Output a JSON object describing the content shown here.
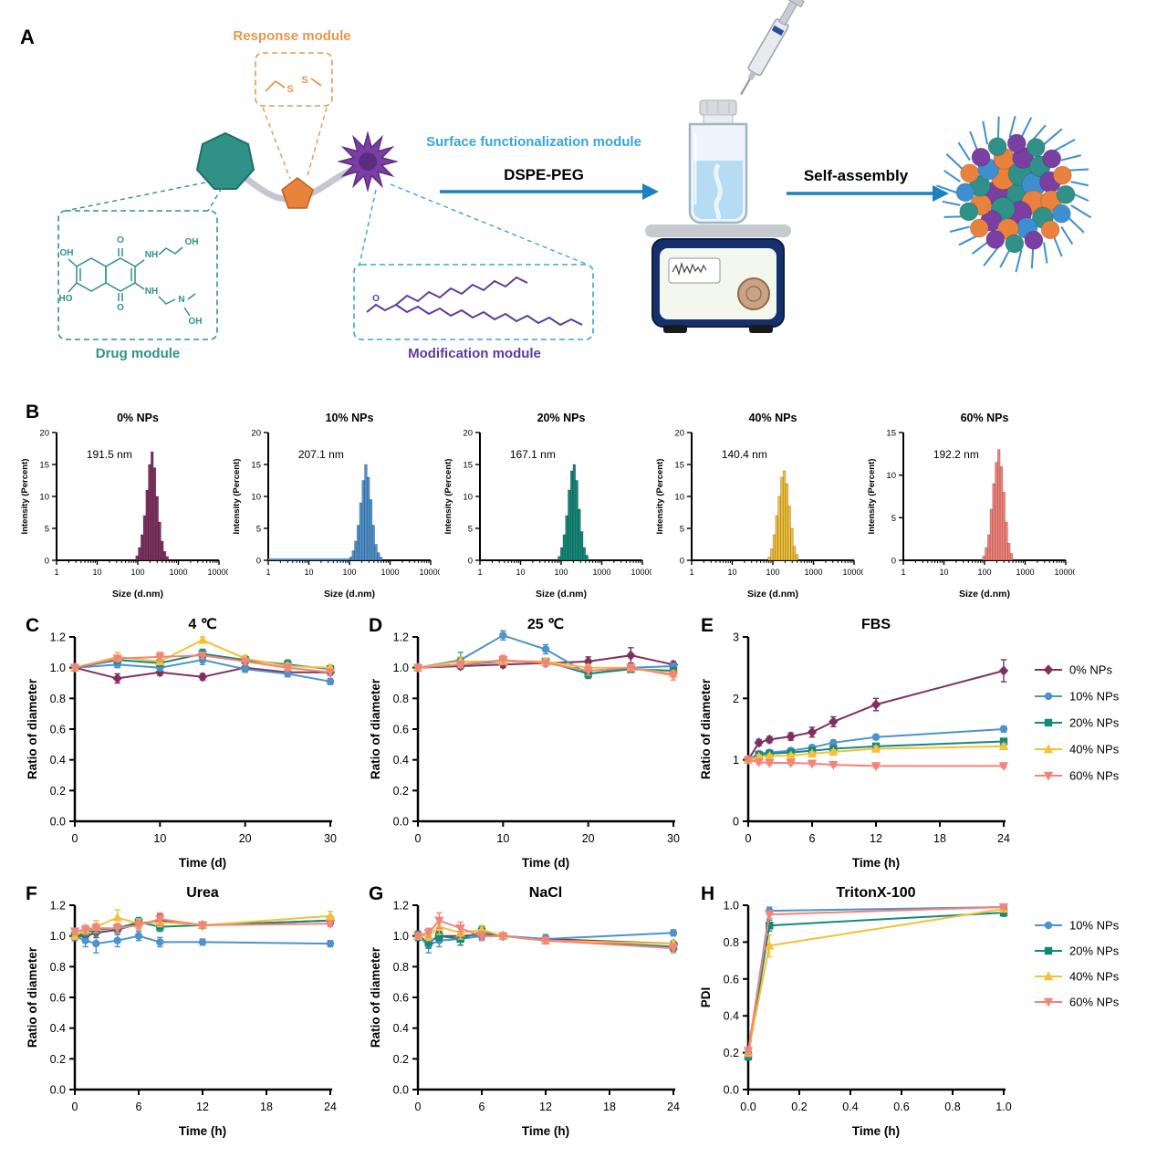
{
  "panels": {
    "a": "A",
    "b": "B",
    "c": "C",
    "d": "D",
    "e": "E",
    "f": "F",
    "g": "G",
    "h": "H"
  },
  "panelA": {
    "response_module": "Response module",
    "drug_module": "Drug module",
    "surface_module": "Surface functionalization module",
    "modification_module": "Modification module",
    "dspe_peg": "DSPE-PEG",
    "self_assembly": "Self-assembly",
    "disulfide": [
      "S",
      "S"
    ],
    "drug_labels": [
      "OH",
      "O",
      "NH",
      "OH",
      "HO",
      "O",
      "NH",
      "N",
      "OH"
    ],
    "lipid_o": "O",
    "colors": {
      "response": "#E8954E",
      "drug": "#2F9188",
      "surface": "#39A5DC",
      "modification": "#5B3A9B",
      "arrow": "#1E7FC2"
    }
  },
  "series_colors": {
    "0% NPs": "#7E3160",
    "10% NPs": "#4E91CB",
    "20% NPs": "#14897B",
    "40% NPs": "#F3C13A",
    "60% NPs": "#F4837A"
  },
  "chart_data": [
    {
      "type": "hist",
      "title": "0% NPs",
      "peak_label": "191.5 nm",
      "color": "#7E3160",
      "ylabel": "Intensity (Percent)",
      "xlabel": "Size (d.nm)",
      "xticklabels": [
        "1",
        "10",
        "100",
        "1000",
        "10000"
      ],
      "ymax": 20,
      "yticks": [
        0,
        5,
        10,
        15,
        20
      ],
      "log_start": 1.95,
      "log_step": 0.062,
      "bars": [
        0.7,
        2,
        4,
        7,
        11,
        15,
        17,
        14.5,
        10,
        6,
        3,
        1.4,
        0.6
      ]
    },
    {
      "type": "hist",
      "title": "10% NPs",
      "peak_label": "207.1 nm",
      "color": "#4E91CB",
      "ylabel": "Intensity (Percent)",
      "xlabel": "Size (d.nm)",
      "xticklabels": [
        "1",
        "10",
        "100",
        "1000",
        "10000"
      ],
      "ymax": 20,
      "yticks": [
        0,
        5,
        10,
        15,
        20
      ],
      "log_start": 2.0,
      "log_step": 0.062,
      "baseline": 2.05,
      "bars": [
        0.5,
        1.5,
        3,
        5.5,
        9,
        12.5,
        15,
        13,
        9.5,
        5.5,
        2.5,
        1.2,
        0.5
      ]
    },
    {
      "type": "hist",
      "title": "20% NPs",
      "peak_label": "167.1 nm",
      "color": "#14897B",
      "ylabel": "Intensity (Percent)",
      "xlabel": "Size (d.nm)",
      "xticklabels": [
        "1",
        "10",
        "100",
        "1000",
        "10000"
      ],
      "ymax": 20,
      "yticks": [
        0,
        5,
        10,
        15,
        20
      ],
      "log_start": 1.92,
      "log_step": 0.062,
      "bars": [
        0.6,
        2,
        4,
        7,
        11,
        14,
        15,
        12.5,
        8,
        4.5,
        2,
        0.8
      ]
    },
    {
      "type": "hist",
      "title": "40% NPs",
      "peak_label": "140.4 nm",
      "color": "#F3C13A",
      "ylabel": "Intensity (Percent)",
      "xlabel": "Size (d.nm)",
      "xticklabels": [
        "1",
        "10",
        "100",
        "1000",
        "10000"
      ],
      "ymax": 20,
      "yticks": [
        0,
        5,
        10,
        15,
        20
      ],
      "log_start": 1.88,
      "log_step": 0.062,
      "bars": [
        0.5,
        1.8,
        4,
        7,
        10,
        13,
        14,
        12,
        8.5,
        5,
        2.2,
        0.9
      ]
    },
    {
      "type": "hist",
      "title": "60% NPs",
      "peak_label": "192.2 nm",
      "color": "#F4837A",
      "ylabel": "Intensity (Percent)",
      "xlabel": "Size (d.nm)",
      "xticklabels": [
        "1",
        "10",
        "100",
        "1000",
        "10000"
      ],
      "ymax": 15,
      "yticks": [
        0,
        5,
        10,
        15
      ],
      "log_start": 1.95,
      "log_step": 0.062,
      "bars": [
        0.5,
        1.5,
        3,
        6,
        9,
        11.5,
        13,
        11,
        8,
        4.5,
        2,
        0.8
      ]
    },
    {
      "type": "line",
      "title": "4 ℃",
      "xlabel": "Time (d)",
      "ylabel": "Ratio of diameter",
      "xlim": [
        0,
        30
      ],
      "ylim": [
        0,
        1.2
      ],
      "xticks": [
        0,
        10,
        20,
        30
      ],
      "yticks": [
        0,
        0.2,
        0.4,
        0.6,
        0.8,
        1.0,
        1.2
      ],
      "xfmt": 0,
      "yfmt": 1,
      "x": [
        0,
        5,
        10,
        15,
        20,
        25,
        30
      ],
      "series": [
        {
          "name": "0% NPs",
          "color": "#7E3160",
          "marker": "diamond",
          "y": [
            1.0,
            0.93,
            0.97,
            0.94,
            1.0,
            0.97,
            0.97
          ],
          "err": [
            0.02,
            0.03,
            0.02,
            0.02,
            0.02,
            0.02,
            0.02
          ]
        },
        {
          "name": "10% NPs",
          "color": "#4E91CB",
          "marker": "circle",
          "y": [
            1.0,
            1.02,
            1.0,
            1.05,
            0.99,
            0.96,
            0.91
          ],
          "err": [
            0.02,
            0.02,
            0.02,
            0.03,
            0.02,
            0.02,
            0.02
          ]
        },
        {
          "name": "20% NPs",
          "color": "#14897B",
          "marker": "square",
          "y": [
            1.0,
            1.05,
            1.03,
            1.09,
            1.05,
            1.02,
            0.99
          ],
          "err": [
            0.02,
            0.02,
            0.02,
            0.03,
            0.03,
            0.03,
            0.02
          ]
        },
        {
          "name": "40% NPs",
          "color": "#F3C13A",
          "marker": "triangle-up",
          "y": [
            1.0,
            1.07,
            1.04,
            1.18,
            1.06,
            1.01,
            1.0
          ],
          "err": [
            0.02,
            0.03,
            0.02,
            0.02,
            0.02,
            0.02,
            0.02
          ]
        },
        {
          "name": "60% NPs",
          "color": "#F4837A",
          "marker": "triangle-down",
          "y": [
            1.0,
            1.06,
            1.07,
            1.08,
            1.04,
            1.0,
            0.97
          ],
          "err": [
            0.02,
            0.02,
            0.03,
            0.02,
            0.02,
            0.02,
            0.02
          ]
        }
      ]
    },
    {
      "type": "line",
      "title": "25 ℃",
      "xlabel": "Time (d)",
      "ylabel": "Ratio of diameter",
      "xlim": [
        0,
        30
      ],
      "ylim": [
        0,
        1.2
      ],
      "xticks": [
        0,
        10,
        20,
        30
      ],
      "yticks": [
        0,
        0.2,
        0.4,
        0.6,
        0.8,
        1.0,
        1.2
      ],
      "xfmt": 0,
      "yfmt": 1,
      "x": [
        0,
        5,
        10,
        15,
        20,
        25,
        30
      ],
      "series": [
        {
          "name": "0% NPs",
          "color": "#7E3160",
          "marker": "diamond",
          "y": [
            1.0,
            1.01,
            1.02,
            1.03,
            1.04,
            1.08,
            1.02
          ],
          "err": [
            0.02,
            0.02,
            0.02,
            0.02,
            0.03,
            0.05,
            0.02
          ]
        },
        {
          "name": "10% NPs",
          "color": "#4E91CB",
          "marker": "circle",
          "y": [
            1.0,
            1.05,
            1.21,
            1.12,
            0.96,
            1.0,
            1.01
          ],
          "err": [
            0.02,
            0.05,
            0.03,
            0.03,
            0.03,
            0.02,
            0.02
          ]
        },
        {
          "name": "20% NPs",
          "color": "#14897B",
          "marker": "square",
          "y": [
            1.0,
            1.02,
            1.04,
            1.04,
            0.96,
            0.99,
            0.98
          ],
          "err": [
            0.02,
            0.02,
            0.02,
            0.02,
            0.03,
            0.02,
            0.02
          ]
        },
        {
          "name": "40% NPs",
          "color": "#F3C13A",
          "marker": "triangle-up",
          "y": [
            1.0,
            1.04,
            1.04,
            1.04,
            1.0,
            1.0,
            0.96
          ],
          "err": [
            0.02,
            0.03,
            0.02,
            0.02,
            0.02,
            0.02,
            0.02
          ]
        },
        {
          "name": "60% NPs",
          "color": "#F4837A",
          "marker": "triangle-down",
          "y": [
            1.0,
            1.02,
            1.05,
            1.03,
            0.98,
            1.0,
            0.95
          ],
          "err": [
            0.02,
            0.02,
            0.03,
            0.02,
            0.03,
            0.02,
            0.03
          ]
        }
      ]
    },
    {
      "type": "line",
      "title": "FBS",
      "xlabel": "Time (h)",
      "ylabel": "Ratio of diameter",
      "xlim": [
        0,
        24
      ],
      "ylim": [
        0,
        3
      ],
      "xticks": [
        0,
        6,
        12,
        18,
        24
      ],
      "yticks": [
        0,
        1,
        2,
        3
      ],
      "xfmt": 0,
      "yfmt": 0,
      "legend": true,
      "x": [
        0,
        1,
        2,
        4,
        6,
        8,
        12,
        24
      ],
      "series": [
        {
          "name": "0% NPs",
          "color": "#7E3160",
          "marker": "diamond",
          "y": [
            1.0,
            1.28,
            1.33,
            1.38,
            1.45,
            1.62,
            1.9,
            2.45
          ],
          "err": [
            0.03,
            0.05,
            0.05,
            0.06,
            0.08,
            0.08,
            0.1,
            0.18
          ]
        },
        {
          "name": "10% NPs",
          "color": "#4E91CB",
          "marker": "circle",
          "y": [
            1.0,
            1.1,
            1.12,
            1.15,
            1.2,
            1.28,
            1.37,
            1.5
          ],
          "err": [
            0.03,
            0.04,
            0.04,
            0.04,
            0.04,
            0.04,
            0.04,
            0.05
          ]
        },
        {
          "name": "20% NPs",
          "color": "#14897B",
          "marker": "square",
          "y": [
            1.0,
            1.08,
            1.1,
            1.12,
            1.15,
            1.18,
            1.22,
            1.3
          ],
          "err": [
            0.03,
            0.03,
            0.03,
            0.03,
            0.03,
            0.04,
            0.04,
            0.04
          ]
        },
        {
          "name": "40% NPs",
          "color": "#F3C13A",
          "marker": "triangle-up",
          "y": [
            1.0,
            1.05,
            1.06,
            1.07,
            1.1,
            1.13,
            1.18,
            1.22
          ],
          "err": [
            0.03,
            0.03,
            0.03,
            0.03,
            0.03,
            0.03,
            0.04,
            0.04
          ]
        },
        {
          "name": "60% NPs",
          "color": "#F4837A",
          "marker": "triangle-down",
          "y": [
            1.0,
            0.96,
            0.95,
            0.95,
            0.94,
            0.92,
            0.9,
            0.9
          ],
          "err": [
            0.02,
            0.03,
            0.03,
            0.03,
            0.03,
            0.03,
            0.03,
            0.03
          ]
        }
      ]
    },
    {
      "type": "line",
      "title": "Urea",
      "xlabel": "Time (h)",
      "ylabel": "Ratio of diameter",
      "xlim": [
        0,
        24
      ],
      "ylim": [
        0,
        1.2
      ],
      "xticks": [
        0,
        6,
        12,
        18,
        24
      ],
      "yticks": [
        0,
        0.2,
        0.4,
        0.6,
        0.8,
        1.0,
        1.2
      ],
      "xfmt": 0,
      "yfmt": 1,
      "x": [
        0,
        1,
        2,
        4,
        6,
        8,
        12,
        24
      ],
      "series": [
        {
          "name": "0% NPs",
          "color": "#7E3160",
          "marker": "diamond",
          "y": [
            1.0,
            1.0,
            1.02,
            1.04,
            1.08,
            1.1,
            1.07,
            1.1
          ],
          "err": [
            0.03,
            0.03,
            0.03,
            0.03,
            0.03,
            0.04,
            0.02,
            0.02
          ]
        },
        {
          "name": "10% NPs",
          "color": "#4E91CB",
          "marker": "circle",
          "y": [
            1.0,
            0.97,
            0.95,
            0.97,
            1.0,
            0.96,
            0.96,
            0.95
          ],
          "err": [
            0.03,
            0.04,
            0.06,
            0.04,
            0.03,
            0.03,
            0.02,
            0.02
          ]
        },
        {
          "name": "20% NPs",
          "color": "#14897B",
          "marker": "square",
          "y": [
            1.0,
            1.02,
            1.04,
            1.05,
            1.09,
            1.06,
            1.07,
            1.1
          ],
          "err": [
            0.02,
            0.03,
            0.03,
            0.03,
            0.03,
            0.03,
            0.02,
            0.03
          ]
        },
        {
          "name": "40% NPs",
          "color": "#F3C13A",
          "marker": "triangle-up",
          "y": [
            1.0,
            1.04,
            1.06,
            1.12,
            1.08,
            1.09,
            1.07,
            1.13
          ],
          "err": [
            0.02,
            0.03,
            0.04,
            0.05,
            0.03,
            0.03,
            0.02,
            0.03
          ]
        },
        {
          "name": "60% NPs",
          "color": "#F4837A",
          "marker": "triangle-down",
          "y": [
            1.03,
            1.04,
            1.05,
            1.05,
            1.07,
            1.11,
            1.07,
            1.08
          ],
          "err": [
            0.02,
            0.03,
            0.03,
            0.03,
            0.03,
            0.04,
            0.02,
            0.02
          ]
        }
      ]
    },
    {
      "type": "line",
      "title": "NaCl",
      "xlabel": "Time (h)",
      "ylabel": "Ratio of diameter",
      "xlim": [
        0,
        24
      ],
      "ylim": [
        0,
        1.2
      ],
      "xticks": [
        0,
        6,
        12,
        18,
        24
      ],
      "yticks": [
        0,
        0.2,
        0.4,
        0.6,
        0.8,
        1.0,
        1.2
      ],
      "xfmt": 0,
      "yfmt": 1,
      "x": [
        0,
        1,
        2,
        4,
        6,
        8,
        12,
        24
      ],
      "series": [
        {
          "name": "0% NPs",
          "color": "#7E3160",
          "marker": "diamond",
          "y": [
            1.0,
            0.96,
            1.0,
            1.0,
            1.01,
            1.0,
            0.98,
            0.95
          ],
          "err": [
            0.03,
            0.03,
            0.03,
            0.03,
            0.03,
            0.02,
            0.02,
            0.02
          ]
        },
        {
          "name": "10% NPs",
          "color": "#4E91CB",
          "marker": "circle",
          "y": [
            1.0,
            0.94,
            0.97,
            0.98,
            1.0,
            1.0,
            0.98,
            1.02
          ],
          "err": [
            0.03,
            0.05,
            0.04,
            0.04,
            0.03,
            0.02,
            0.03,
            0.02
          ]
        },
        {
          "name": "20% NPs",
          "color": "#14897B",
          "marker": "square",
          "y": [
            1.0,
            0.96,
            1.0,
            0.98,
            1.03,
            1.0,
            0.97,
            0.93
          ],
          "err": [
            0.03,
            0.04,
            0.03,
            0.04,
            0.03,
            0.02,
            0.02,
            0.03
          ]
        },
        {
          "name": "40% NPs",
          "color": "#F3C13A",
          "marker": "triangle-up",
          "y": [
            1.0,
            1.0,
            1.06,
            1.02,
            1.04,
            1.0,
            0.97,
            0.95
          ],
          "err": [
            0.02,
            0.03,
            0.05,
            0.04,
            0.03,
            0.02,
            0.02,
            0.02
          ]
        },
        {
          "name": "60% NPs",
          "color": "#F4837A",
          "marker": "triangle-down",
          "y": [
            1.0,
            1.02,
            1.1,
            1.05,
            1.0,
            1.0,
            0.97,
            0.92
          ],
          "err": [
            0.02,
            0.03,
            0.05,
            0.04,
            0.03,
            0.02,
            0.02,
            0.03
          ]
        }
      ]
    },
    {
      "type": "line",
      "title": "TritonX-100",
      "xlabel": "Time (h)",
      "ylabel": "PDI",
      "xlim": [
        0,
        1
      ],
      "ylim": [
        0,
        1
      ],
      "xticks": [
        0,
        0.2,
        0.4,
        0.6,
        0.8,
        1
      ],
      "yticks": [
        0,
        0.2,
        0.4,
        0.6,
        0.8,
        1.0
      ],
      "xfmt": 1,
      "yfmt": 1,
      "legend": true,
      "x": [
        0,
        0.083,
        1
      ],
      "series": [
        {
          "name": "10% NPs",
          "color": "#4E91CB",
          "marker": "circle",
          "y": [
            0.2,
            0.97,
            0.99
          ],
          "err": [
            0.02,
            0.02,
            0.01
          ]
        },
        {
          "name": "20% NPs",
          "color": "#14897B",
          "marker": "square",
          "y": [
            0.18,
            0.89,
            0.96
          ],
          "err": [
            0.02,
            0.03,
            0.02
          ]
        },
        {
          "name": "40% NPs",
          "color": "#F3C13A",
          "marker": "triangle-up",
          "y": [
            0.2,
            0.78,
            0.98
          ],
          "err": [
            0.02,
            0.06,
            0.01
          ]
        },
        {
          "name": "60% NPs",
          "color": "#F4837A",
          "marker": "triangle-down",
          "y": [
            0.21,
            0.95,
            0.99
          ],
          "err": [
            0.02,
            0.02,
            0.01
          ]
        }
      ]
    }
  ]
}
